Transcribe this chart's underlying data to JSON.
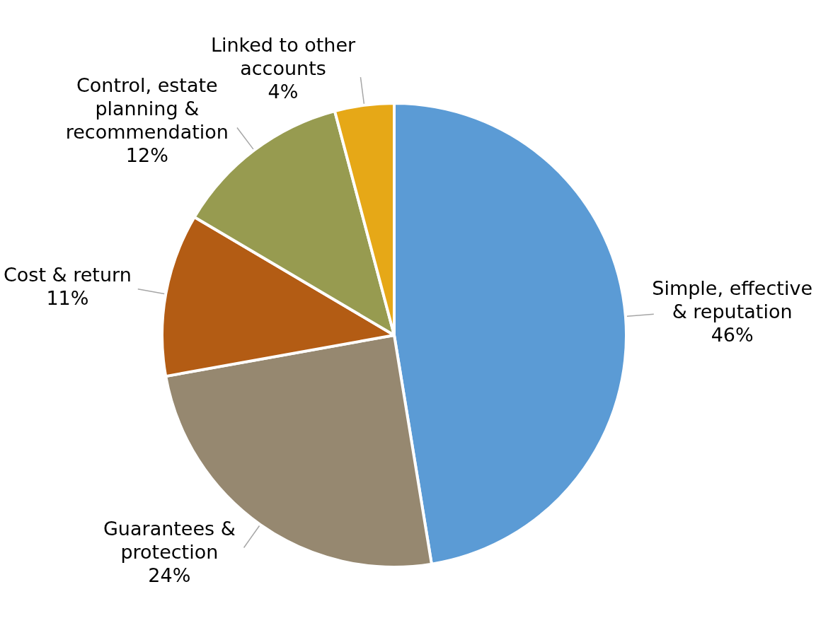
{
  "chart_data": {
    "type": "pie",
    "categories": [
      "Simple, effective & reputation",
      "Guarantees & protection",
      "Cost & return",
      "Control, estate planning & recommendation",
      "Linked to other accounts"
    ],
    "values": [
      46,
      24,
      11,
      12,
      4
    ],
    "value_labels": [
      "46%",
      "24%",
      "11%",
      "12%",
      "4%"
    ],
    "colors": [
      "#5b9bd5",
      "#968870",
      "#b35c14",
      "#979b50",
      "#e6a817"
    ],
    "legend": false
  }
}
